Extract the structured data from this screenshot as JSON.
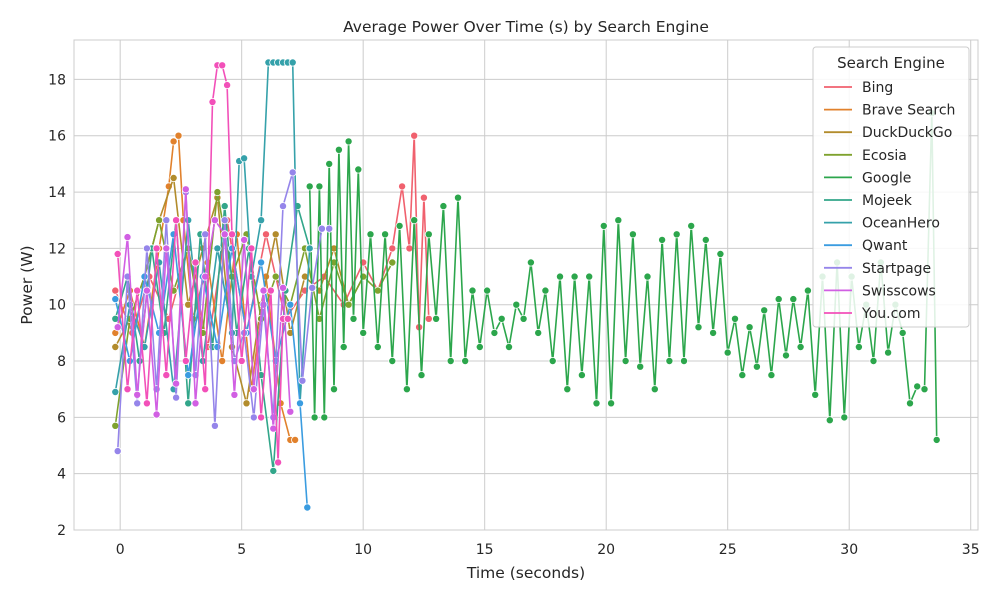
{
  "chart_data": {
    "type": "line",
    "title": "Average Power Over Time (s) by Search Engine",
    "xlabel": "Time (seconds)",
    "ylabel": "Power (W)",
    "xlim": [
      -1.9,
      35.3
    ],
    "ylim": [
      2,
      19.4
    ],
    "xticks": [
      0,
      5,
      10,
      15,
      20,
      25,
      30,
      35
    ],
    "yticks": [
      2,
      4,
      6,
      8,
      10,
      12,
      14,
      16,
      18
    ],
    "grid": true,
    "legend": {
      "title": "Search Engine",
      "position": "top-right"
    },
    "markers": "circle",
    "series": [
      {
        "name": "Bing",
        "color": "#f0616e",
        "x": [
          -0.2,
          0.5,
          1.2,
          2.0,
          2.8,
          3.6,
          4.4,
          5.2,
          6.0,
          6.8,
          7.6,
          8.4,
          9.2,
          10.0,
          10.6,
          11.2,
          11.6,
          11.9,
          12.1,
          12.3,
          12.5,
          12.7
        ],
        "y": [
          10.5,
          9.0,
          11.0,
          9.5,
          12.0,
          8.5,
          13.0,
          9.0,
          12.5,
          9.5,
          10.5,
          11.0,
          10.0,
          11.5,
          10.5,
          12.0,
          14.2,
          12.0,
          16.0,
          9.2,
          13.8,
          9.5
        ]
      },
      {
        "name": "Brave Search",
        "color": "#e1812c",
        "x": [
          -0.2,
          0.4,
          1.0,
          1.6,
          2.0,
          2.2,
          2.4,
          2.6,
          3.0,
          3.6,
          4.2,
          4.8,
          5.4,
          6.0,
          6.6,
          7.0,
          7.2
        ],
        "y": [
          9.0,
          10.5,
          8.5,
          12.0,
          14.2,
          15.8,
          16.0,
          13.0,
          9.5,
          11.5,
          8.0,
          12.5,
          7.0,
          11.0,
          6.5,
          5.2,
          5.2
        ]
      },
      {
        "name": "DuckDuckGo",
        "color": "#b28c2c",
        "x": [
          -0.2,
          0.4,
          1.0,
          1.6,
          2.2,
          2.8,
          3.4,
          4.0,
          4.6,
          5.2,
          5.8,
          6.4,
          7.0,
          7.6,
          8.2,
          8.8,
          9.4,
          10.0
        ],
        "y": [
          8.5,
          9.5,
          11.0,
          13.0,
          14.5,
          10.0,
          12.0,
          13.8,
          8.5,
          6.5,
          10.0,
          12.5,
          9.0,
          11.0,
          10.5,
          12.0,
          10.0,
          11.0
        ]
      },
      {
        "name": "Ecosia",
        "color": "#7fa22e",
        "x": [
          -0.2,
          0.4,
          1.0,
          1.6,
          2.2,
          2.8,
          3.4,
          4.0,
          4.6,
          5.2,
          5.8,
          6.4,
          7.0,
          7.6,
          8.2,
          8.8,
          9.4,
          10.0,
          10.6,
          11.2
        ],
        "y": [
          5.7,
          9.5,
          11.0,
          13.0,
          10.5,
          12.0,
          9.0,
          14.0,
          11.0,
          12.5,
          9.5,
          11.0,
          10.0,
          12.0,
          9.5,
          11.5,
          10.0,
          11.0,
          10.5,
          11.5
        ]
      },
      {
        "name": "Google",
        "color": "#2ca64c",
        "x": [
          7.8,
          8.0,
          8.2,
          8.4,
          8.6,
          8.8,
          9.0,
          9.2,
          9.4,
          9.6,
          9.8,
          10.0,
          10.3,
          10.6,
          10.9,
          11.2,
          11.5,
          11.8,
          12.1,
          12.4,
          12.7,
          13.0,
          13.3,
          13.6,
          13.9,
          14.2,
          14.5,
          14.8,
          15.1,
          15.4,
          15.7,
          16.0,
          16.3,
          16.6,
          16.9,
          17.2,
          17.5,
          17.8,
          18.1,
          18.4,
          18.7,
          19.0,
          19.3,
          19.6,
          19.9,
          20.2,
          20.5,
          20.8,
          21.1,
          21.4,
          21.7,
          22.0,
          22.3,
          22.6,
          22.9,
          23.2,
          23.5,
          23.8,
          24.1,
          24.4,
          24.7,
          25.0,
          25.3,
          25.6,
          25.9,
          26.2,
          26.5,
          26.8,
          27.1,
          27.4,
          27.7,
          28.0,
          28.3,
          28.6,
          28.9,
          29.2,
          29.5,
          29.8,
          30.1,
          30.4,
          30.7,
          31.0,
          31.3,
          31.6,
          31.9,
          32.2,
          32.5,
          32.8,
          33.1,
          33.4,
          33.6
        ],
        "y": [
          14.2,
          6.0,
          14.2,
          6.0,
          15.0,
          7.0,
          15.5,
          8.5,
          15.8,
          9.5,
          14.8,
          9.0,
          12.5,
          8.5,
          12.5,
          8.0,
          12.8,
          7.0,
          13.0,
          7.5,
          12.5,
          9.5,
          13.5,
          8.0,
          13.8,
          8.0,
          10.5,
          8.5,
          10.5,
          9.0,
          9.5,
          8.5,
          10.0,
          9.5,
          11.5,
          9.0,
          10.5,
          8.0,
          11.0,
          7.0,
          11.0,
          7.5,
          11.0,
          6.5,
          12.8,
          6.5,
          13.0,
          8.0,
          12.5,
          7.8,
          11.0,
          7.0,
          12.3,
          8.0,
          12.5,
          8.0,
          12.8,
          9.2,
          12.3,
          9.0,
          11.8,
          8.3,
          9.5,
          7.5,
          9.2,
          7.8,
          9.8,
          7.5,
          10.2,
          8.2,
          10.2,
          8.5,
          10.5,
          6.8,
          11.0,
          5.9,
          11.5,
          6.0,
          11.0,
          8.5,
          10.0,
          8.0,
          11.5,
          8.3,
          10.0,
          9.0,
          6.5,
          7.1,
          7.0,
          16.8,
          5.2
        ]
      },
      {
        "name": "Mojeek",
        "color": "#32a68a",
        "x": [
          -0.2,
          0.3,
          0.8,
          1.3,
          1.8,
          2.3,
          2.8,
          3.3,
          3.8,
          4.3,
          4.8,
          5.3,
          5.8,
          6.3,
          6.8,
          7.3,
          7.8
        ],
        "y": [
          9.5,
          11.0,
          8.0,
          12.0,
          9.0,
          13.0,
          6.5,
          12.5,
          8.5,
          13.5,
          9.0,
          12.0,
          7.5,
          4.1,
          10.5,
          13.5,
          12.0
        ]
      },
      {
        "name": "OceanHero",
        "color": "#35a1aa",
        "x": [
          -0.2,
          0.4,
          1.0,
          1.6,
          2.2,
          2.8,
          3.4,
          4.0,
          4.6,
          4.9,
          5.1,
          5.4,
          5.8,
          6.1,
          6.3,
          6.5,
          6.7,
          6.9,
          7.1,
          7.4,
          7.8
        ],
        "y": [
          6.9,
          10.0,
          8.5,
          11.5,
          7.0,
          13.0,
          8.0,
          12.0,
          9.0,
          15.1,
          15.2,
          11.0,
          13.0,
          18.6,
          18.6,
          18.6,
          18.6,
          18.6,
          18.6,
          6.5,
          12.0
        ]
      },
      {
        "name": "Qwant",
        "color": "#3a9ce0",
        "x": [
          -0.2,
          0.4,
          1.0,
          1.6,
          2.2,
          2.8,
          3.4,
          4.0,
          4.6,
          5.2,
          5.8,
          6.4,
          7.0,
          7.4,
          7.7
        ],
        "y": [
          10.2,
          8.0,
          11.0,
          9.0,
          12.5,
          7.5,
          11.0,
          8.5,
          12.0,
          9.0,
          11.5,
          8.0,
          10.0,
          6.5,
          2.8
        ]
      },
      {
        "name": "Startpage",
        "color": "#9585ea",
        "x": [
          -0.1,
          0.3,
          0.7,
          1.1,
          1.5,
          1.9,
          2.3,
          2.7,
          3.1,
          3.5,
          3.9,
          4.3,
          4.7,
          5.1,
          5.5,
          5.9,
          6.3,
          6.7,
          7.1,
          7.5,
          7.9,
          8.3,
          8.6
        ],
        "y": [
          4.8,
          11.0,
          6.5,
          12.0,
          7.0,
          13.0,
          6.7,
          14.0,
          7.5,
          12.5,
          5.7,
          13.0,
          8.0,
          9.0,
          6.0,
          10.0,
          6.0,
          13.5,
          14.7,
          7.3,
          10.6,
          12.7,
          12.7
        ]
      },
      {
        "name": "Swisscows",
        "color": "#d15fe3",
        "x": [
          -0.1,
          0.3,
          0.7,
          1.1,
          1.5,
          1.9,
          2.3,
          2.7,
          3.1,
          3.5,
          3.9,
          4.3,
          4.7,
          5.1,
          5.5,
          5.9,
          6.3,
          6.7,
          7.0
        ],
        "y": [
          9.2,
          12.4,
          6.8,
          10.5,
          6.1,
          12.0,
          7.2,
          14.1,
          6.5,
          11.0,
          13.0,
          12.5,
          6.8,
          12.3,
          7.0,
          10.5,
          5.6,
          10.6,
          6.2
        ]
      },
      {
        "name": "You.com",
        "color": "#f250b9",
        "x": [
          -0.1,
          0.3,
          0.7,
          1.1,
          1.5,
          1.9,
          2.3,
          2.7,
          3.1,
          3.5,
          3.8,
          4.0,
          4.2,
          4.4,
          4.6,
          5.0,
          5.4,
          5.8,
          6.2,
          6.5,
          6.7,
          6.9
        ],
        "y": [
          11.8,
          7.0,
          10.5,
          6.5,
          12.0,
          7.5,
          13.0,
          8.0,
          11.5,
          7.0,
          17.2,
          18.5,
          18.5,
          17.8,
          12.5,
          8.0,
          12.0,
          6.0,
          10.5,
          4.4,
          9.5,
          9.5
        ]
      }
    ]
  }
}
